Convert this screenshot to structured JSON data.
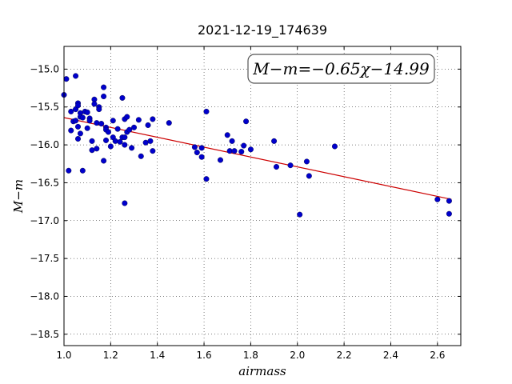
{
  "chart_data": {
    "type": "scatter",
    "title": "2021-12-19_174639",
    "xlabel": "airmass",
    "ylabel": "M−m",
    "xlim": [
      1.0,
      2.7
    ],
    "ylim": [
      -18.65,
      -14.7
    ],
    "grid": true,
    "x_ticks": [
      1.0,
      1.2,
      1.4,
      1.6,
      1.8,
      2.0,
      2.2,
      2.4,
      2.6
    ],
    "x_tick_labels": [
      "1.0",
      "1.2",
      "1.4",
      "1.6",
      "1.8",
      "2.0",
      "2.2",
      "2.4",
      "2.6"
    ],
    "y_ticks": [
      -15.0,
      -15.5,
      -16.0,
      -16.5,
      -17.0,
      -17.5,
      -18.0,
      -18.5
    ],
    "y_tick_labels": [
      "−15.0",
      "−15.5",
      "−16.0",
      "−16.5",
      "−17.0",
      "−17.5",
      "−18.0",
      "−18.5"
    ],
    "annotation": "M−m=−0.65χ−14.99",
    "fit": {
      "slope": -0.65,
      "intercept": -14.99,
      "x_range": [
        1.0,
        2.66
      ],
      "color": "#cc0000"
    },
    "point_color": "#0000cc",
    "points": [
      [
        1.0,
        -15.34
      ],
      [
        1.01,
        -15.13
      ],
      [
        1.02,
        -16.34
      ],
      [
        1.03,
        -15.56
      ],
      [
        1.03,
        -15.81
      ],
      [
        1.04,
        -15.69
      ],
      [
        1.05,
        -15.09
      ],
      [
        1.05,
        -15.53
      ],
      [
        1.05,
        -15.68
      ],
      [
        1.06,
        -15.45
      ],
      [
        1.06,
        -15.48
      ],
      [
        1.06,
        -15.76
      ],
      [
        1.06,
        -15.92
      ],
      [
        1.07,
        -15.58
      ],
      [
        1.07,
        -15.63
      ],
      [
        1.07,
        -15.85
      ],
      [
        1.08,
        -15.64
      ],
      [
        1.08,
        -16.34
      ],
      [
        1.09,
        -15.56
      ],
      [
        1.1,
        -15.78
      ],
      [
        1.1,
        -15.57
      ],
      [
        1.11,
        -15.65
      ],
      [
        1.11,
        -15.68
      ],
      [
        1.12,
        -15.95
      ],
      [
        1.12,
        -16.07
      ],
      [
        1.13,
        -15.4
      ],
      [
        1.13,
        -15.46
      ],
      [
        1.14,
        -15.71
      ],
      [
        1.14,
        -16.05
      ],
      [
        1.15,
        -15.5
      ],
      [
        1.15,
        -15.53
      ],
      [
        1.16,
        -15.72
      ],
      [
        1.17,
        -15.36
      ],
      [
        1.17,
        -15.24
      ],
      [
        1.17,
        -16.21
      ],
      [
        1.18,
        -15.77
      ],
      [
        1.18,
        -15.8
      ],
      [
        1.18,
        -15.94
      ],
      [
        1.19,
        -15.83
      ],
      [
        1.2,
        -16.02
      ],
      [
        1.21,
        -15.68
      ],
      [
        1.21,
        -15.9
      ],
      [
        1.22,
        -15.95
      ],
      [
        1.23,
        -15.79
      ],
      [
        1.24,
        -15.96
      ],
      [
        1.25,
        -15.38
      ],
      [
        1.25,
        -15.9
      ],
      [
        1.26,
        -15.66
      ],
      [
        1.26,
        -16.0
      ],
      [
        1.26,
        -15.9
      ],
      [
        1.27,
        -15.63
      ],
      [
        1.27,
        -15.83
      ],
      [
        1.28,
        -15.8
      ],
      [
        1.29,
        -16.04
      ],
      [
        1.3,
        -15.77
      ],
      [
        1.26,
        -16.77
      ],
      [
        1.32,
        -15.67
      ],
      [
        1.33,
        -16.15
      ],
      [
        1.35,
        -15.97
      ],
      [
        1.36,
        -15.74
      ],
      [
        1.37,
        -15.95
      ],
      [
        1.38,
        -15.66
      ],
      [
        1.38,
        -16.08
      ],
      [
        1.45,
        -15.71
      ],
      [
        1.56,
        -16.03
      ],
      [
        1.57,
        -16.1
      ],
      [
        1.59,
        -16.04
      ],
      [
        1.59,
        -16.16
      ],
      [
        1.61,
        -15.56
      ],
      [
        1.61,
        -16.45
      ],
      [
        1.67,
        -16.2
      ],
      [
        1.7,
        -15.87
      ],
      [
        1.71,
        -16.08
      ],
      [
        1.72,
        -15.95
      ],
      [
        1.73,
        -16.08
      ],
      [
        1.76,
        -16.09
      ],
      [
        1.77,
        -16.01
      ],
      [
        1.78,
        -15.69
      ],
      [
        1.8,
        -16.06
      ],
      [
        1.9,
        -15.95
      ],
      [
        1.91,
        -16.29
      ],
      [
        1.97,
        -16.27
      ],
      [
        2.01,
        -16.92
      ],
      [
        2.04,
        -16.22
      ],
      [
        2.05,
        -16.41
      ],
      [
        2.16,
        -16.02
      ],
      [
        2.6,
        -16.72
      ],
      [
        2.65,
        -16.91
      ],
      [
        2.65,
        -16.74
      ]
    ]
  }
}
